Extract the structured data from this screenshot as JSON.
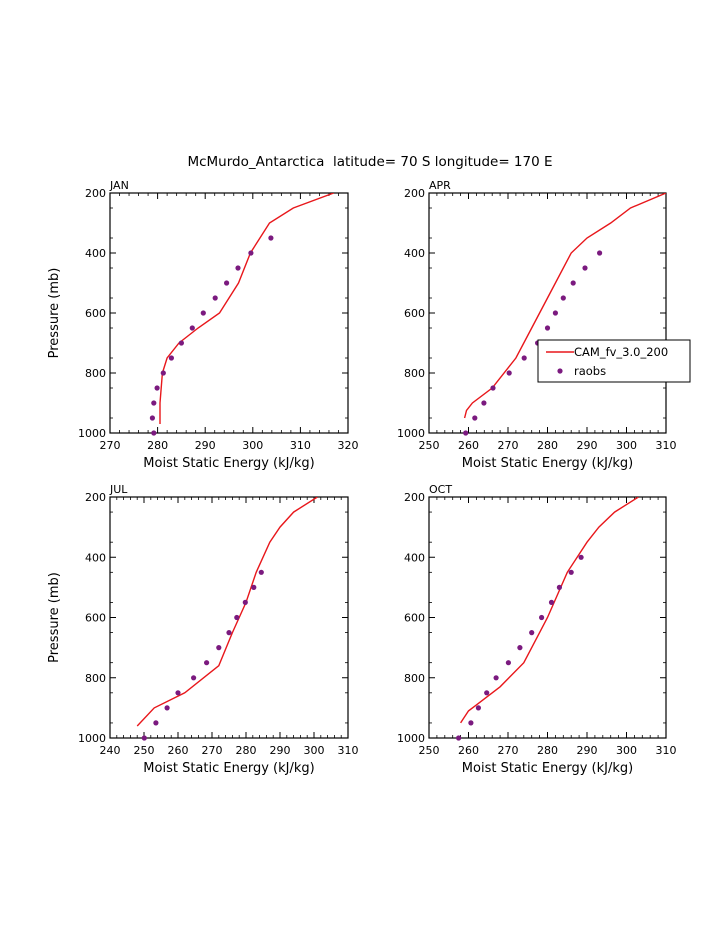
{
  "figure": {
    "title": "McMurdo_Antarctica  latitude= 70 S longitude= 170 E",
    "colors": {
      "model": "#e8171b",
      "obs": "#7b1a7f",
      "axes": "#000000"
    },
    "legend": {
      "entries": [
        "CAM_fv_3.0_200",
        "raobs"
      ],
      "placement": "inside APR panel, right"
    }
  },
  "chart_data": [
    {
      "type": "line",
      "panel": "JAN",
      "xlabel": "Moist Static Energy (kJ/kg)",
      "ylabel": "Pressure (mb)",
      "xlim": [
        270,
        320
      ],
      "ylim": [
        1000,
        200
      ],
      "x_ticks": [
        270,
        280,
        290,
        300,
        310,
        320
      ],
      "y_ticks": [
        200,
        400,
        600,
        800,
        1000
      ],
      "series": [
        {
          "name": "CAM_fv_3.0_200",
          "style": "line",
          "x": [
            280.5,
            280.5,
            281.0,
            282.0,
            284.5,
            288.5,
            293.0,
            297.0,
            299.5,
            303.5,
            308.5,
            317.0
          ],
          "y": [
            970,
            900,
            800,
            750,
            700,
            650,
            600,
            500,
            400,
            300,
            250,
            200
          ]
        },
        {
          "name": "raobs",
          "style": "points",
          "x": [
            279.2,
            278.9,
            279.2,
            279.9,
            281.2,
            282.9,
            285.0,
            287.3,
            289.6,
            292.1,
            294.5,
            296.9,
            299.6,
            303.8
          ],
          "y": [
            1000,
            950,
            900,
            850,
            800,
            750,
            700,
            650,
            600,
            550,
            500,
            450,
            400,
            350
          ]
        }
      ]
    },
    {
      "type": "line",
      "panel": "APR",
      "xlabel": "Moist Static Energy (kJ/kg)",
      "ylabel": "",
      "xlim": [
        250,
        310
      ],
      "ylim": [
        1000,
        200
      ],
      "x_ticks": [
        250,
        260,
        270,
        280,
        290,
        300,
        310
      ],
      "y_ticks": [
        200,
        400,
        600,
        800,
        1000
      ],
      "series": [
        {
          "name": "CAM_fv_3.0_200",
          "style": "line",
          "x": [
            259.0,
            259.5,
            261.0,
            266.0,
            272.0,
            276.0,
            280.0,
            286.0,
            290.0,
            296.0,
            301.0,
            310.0
          ],
          "y": [
            950,
            925,
            900,
            850,
            750,
            650,
            550,
            400,
            350,
            300,
            250,
            200
          ]
        },
        {
          "name": "raobs",
          "style": "points",
          "x": [
            259.3,
            261.6,
            263.9,
            266.2,
            270.3,
            274.1,
            277.5,
            280.0,
            282.0,
            284.0,
            286.5,
            289.5,
            293.2
          ],
          "y": [
            1000,
            950,
            900,
            850,
            800,
            750,
            700,
            650,
            600,
            550,
            500,
            450,
            400
          ]
        }
      ]
    },
    {
      "type": "line",
      "panel": "JUL",
      "xlabel": "Moist Static Energy (kJ/kg)",
      "ylabel": "Pressure (mb)",
      "xlim": [
        240,
        310
      ],
      "ylim": [
        1000,
        200
      ],
      "x_ticks": [
        240,
        250,
        260,
        270,
        280,
        290,
        300,
        310
      ],
      "y_ticks": [
        200,
        400,
        600,
        800,
        1000
      ],
      "series": [
        {
          "name": "CAM_fv_3.0_200",
          "style": "line",
          "x": [
            248.0,
            253.0,
            262.0,
            272.0,
            276.0,
            280.0,
            283.0,
            287.0,
            290.0,
            294.0,
            301.0
          ],
          "y": [
            960,
            900,
            850,
            760,
            650,
            550,
            450,
            350,
            300,
            250,
            200
          ]
        },
        {
          "name": "raobs",
          "style": "points",
          "x": [
            250.1,
            253.5,
            256.8,
            260.0,
            264.6,
            268.4,
            272.0,
            275.0,
            277.3,
            279.8,
            282.3,
            284.5
          ],
          "y": [
            1000,
            950,
            900,
            850,
            800,
            750,
            700,
            650,
            600,
            550,
            500,
            450
          ]
        }
      ]
    },
    {
      "type": "line",
      "panel": "OCT",
      "xlabel": "Moist Static Energy (kJ/kg)",
      "ylabel": "",
      "xlim": [
        250,
        310
      ],
      "ylim": [
        1000,
        200
      ],
      "x_ticks": [
        250,
        260,
        270,
        280,
        290,
        300,
        310
      ],
      "y_ticks": [
        200,
        400,
        600,
        800,
        1000
      ],
      "series": [
        {
          "name": "CAM_fv_3.0_200",
          "style": "line",
          "x": [
            258.0,
            260.0,
            262.0,
            268.0,
            274.0,
            280.0,
            285.0,
            290.0,
            293.0,
            297.0,
            303.0
          ],
          "y": [
            950,
            910,
            890,
            830,
            750,
            600,
            450,
            350,
            300,
            250,
            200
          ]
        },
        {
          "name": "raobs",
          "style": "points",
          "x": [
            257.5,
            260.6,
            262.5,
            264.6,
            267.0,
            270.1,
            273.0,
            276.0,
            278.5,
            281.0,
            283.0,
            286.0,
            288.5
          ],
          "y": [
            1000,
            950,
            900,
            850,
            800,
            750,
            700,
            650,
            600,
            550,
            500,
            450,
            400
          ]
        }
      ]
    }
  ]
}
